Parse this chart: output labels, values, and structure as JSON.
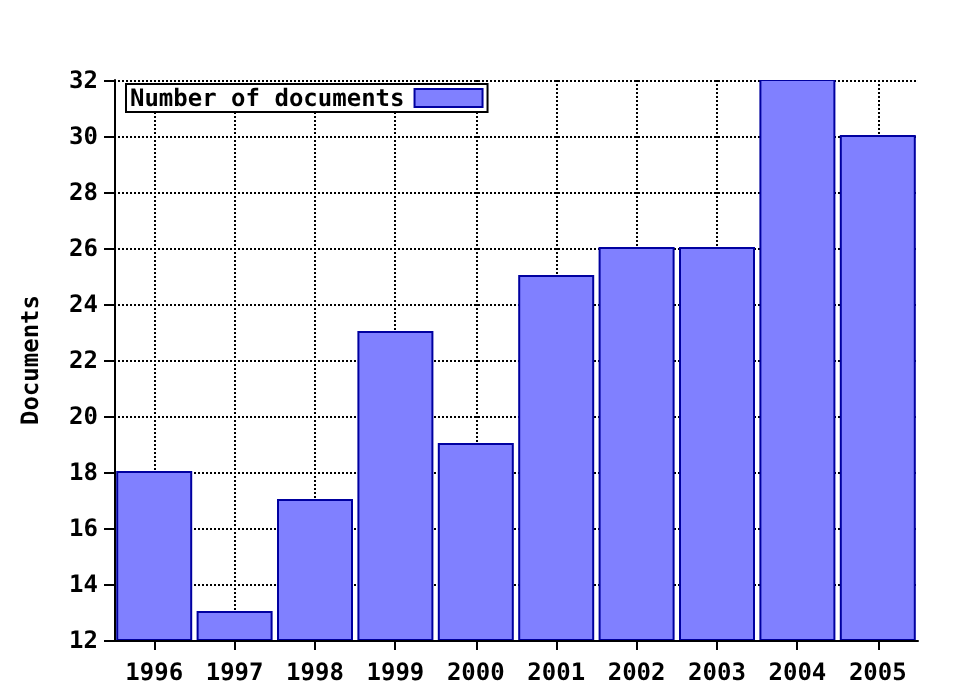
{
  "chart_data": {
    "type": "bar",
    "ylabel": "Documents",
    "x": [
      1996,
      1997,
      1998,
      1999,
      2000,
      2001,
      2002,
      2003,
      2004,
      2005
    ],
    "series": [
      {
        "name": "Number of documents",
        "color": "#8080ff",
        "values": [
          18,
          13,
          17,
          23,
          19,
          25,
          26,
          26,
          32,
          30
        ]
      }
    ],
    "xlim": [
      1995.5,
      2005.5
    ],
    "xticks": [
      1996,
      1997,
      1998,
      1999,
      2000,
      2001,
      2002,
      2003,
      2004,
      2005
    ],
    "ylim": [
      12,
      32
    ],
    "yticks": [
      12,
      14,
      16,
      18,
      20,
      22,
      24,
      26,
      28,
      30,
      32
    ],
    "grid": true,
    "legend": "top left"
  }
}
